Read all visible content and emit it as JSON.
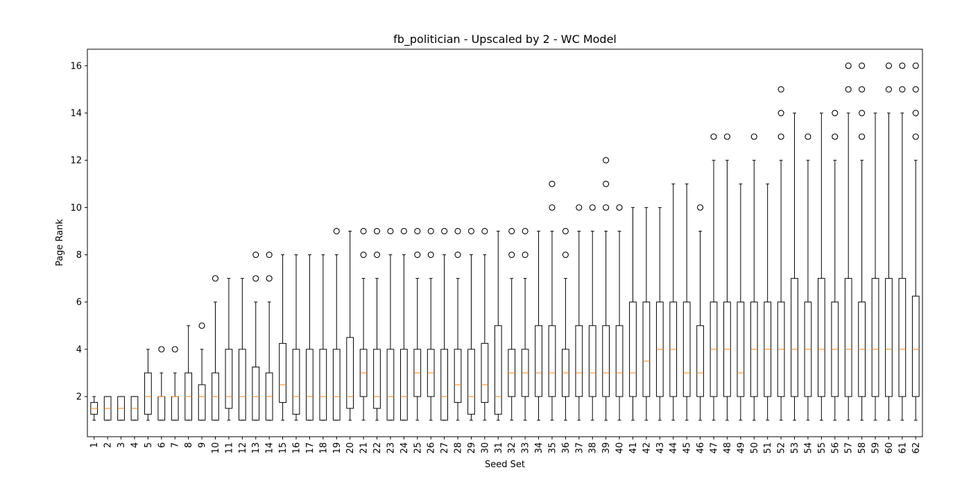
{
  "chart_data": {
    "type": "box",
    "title": "fb_politician - Upscaled by 2 - WC Model",
    "xlabel": "Seed Set",
    "ylabel": "Page Rank",
    "ylim": [
      0.3,
      16.7
    ],
    "yticks": [
      2,
      4,
      6,
      8,
      10,
      12,
      14,
      16
    ],
    "grid": false,
    "colors": {
      "box": "#000000",
      "median": "#ff7f0e",
      "background": "#ffffff"
    },
    "categories": [
      "1",
      "2",
      "3",
      "4",
      "5",
      "6",
      "7",
      "8",
      "9",
      "10",
      "11",
      "12",
      "13",
      "14",
      "15",
      "16",
      "17",
      "18",
      "19",
      "20",
      "21",
      "22",
      "23",
      "24",
      "25",
      "26",
      "27",
      "28",
      "29",
      "30",
      "31",
      "32",
      "33",
      "34",
      "35",
      "36",
      "37",
      "38",
      "39",
      "40",
      "41",
      "42",
      "43",
      "44",
      "45",
      "46",
      "47",
      "48",
      "49",
      "50",
      "51",
      "52",
      "53",
      "54",
      "55",
      "56",
      "57",
      "58",
      "59",
      "60",
      "61",
      "62"
    ],
    "boxes": [
      {
        "whislo": 1,
        "q1": 1.25,
        "med": 1.5,
        "q3": 1.75,
        "whishi": 2,
        "fliers": []
      },
      {
        "whislo": 1,
        "q1": 1,
        "med": 1.5,
        "q3": 2,
        "whishi": 2,
        "fliers": []
      },
      {
        "whislo": 1,
        "q1": 1,
        "med": 1.5,
        "q3": 2,
        "whishi": 2,
        "fliers": []
      },
      {
        "whislo": 1,
        "q1": 1,
        "med": 1.5,
        "q3": 2,
        "whishi": 2,
        "fliers": []
      },
      {
        "whislo": 1,
        "q1": 1.25,
        "med": 2,
        "q3": 3,
        "whishi": 4,
        "fliers": []
      },
      {
        "whislo": 1,
        "q1": 1,
        "med": 2,
        "q3": 2,
        "whishi": 3,
        "fliers": [
          4
        ]
      },
      {
        "whislo": 1,
        "q1": 1,
        "med": 2,
        "q3": 2,
        "whishi": 3,
        "fliers": [
          4
        ]
      },
      {
        "whislo": 1,
        "q1": 1,
        "med": 2,
        "q3": 3,
        "whishi": 5,
        "fliers": []
      },
      {
        "whislo": 1,
        "q1": 1,
        "med": 2,
        "q3": 2.5,
        "whishi": 4,
        "fliers": [
          5
        ]
      },
      {
        "whislo": 1,
        "q1": 1,
        "med": 2,
        "q3": 3,
        "whishi": 6,
        "fliers": [
          7
        ]
      },
      {
        "whislo": 1,
        "q1": 1.5,
        "med": 2,
        "q3": 4,
        "whishi": 7,
        "fliers": []
      },
      {
        "whislo": 1,
        "q1": 1,
        "med": 2,
        "q3": 4,
        "whishi": 7,
        "fliers": []
      },
      {
        "whislo": 1,
        "q1": 1,
        "med": 2,
        "q3": 3.25,
        "whishi": 6,
        "fliers": [
          7,
          8
        ]
      },
      {
        "whislo": 1,
        "q1": 1,
        "med": 2,
        "q3": 3,
        "whishi": 6,
        "fliers": [
          7,
          8
        ]
      },
      {
        "whislo": 1,
        "q1": 1.75,
        "med": 2.5,
        "q3": 4.25,
        "whishi": 8,
        "fliers": []
      },
      {
        "whislo": 1,
        "q1": 1.25,
        "med": 2,
        "q3": 4,
        "whishi": 8,
        "fliers": []
      },
      {
        "whislo": 1,
        "q1": 1,
        "med": 2,
        "q3": 4,
        "whishi": 8,
        "fliers": []
      },
      {
        "whislo": 1,
        "q1": 1,
        "med": 2,
        "q3": 4,
        "whishi": 8,
        "fliers": []
      },
      {
        "whislo": 1,
        "q1": 1,
        "med": 2,
        "q3": 4,
        "whishi": 8,
        "fliers": [
          9
        ]
      },
      {
        "whislo": 1,
        "q1": 1.5,
        "med": 2,
        "q3": 4.5,
        "whishi": 9,
        "fliers": []
      },
      {
        "whislo": 1,
        "q1": 2,
        "med": 3,
        "q3": 4,
        "whishi": 7,
        "fliers": [
          8,
          9
        ]
      },
      {
        "whislo": 1,
        "q1": 1.5,
        "med": 2,
        "q3": 4,
        "whishi": 7,
        "fliers": [
          8,
          9
        ]
      },
      {
        "whislo": 1,
        "q1": 1,
        "med": 2,
        "q3": 4,
        "whishi": 8,
        "fliers": [
          9
        ]
      },
      {
        "whislo": 1,
        "q1": 1,
        "med": 2,
        "q3": 4,
        "whishi": 8,
        "fliers": [
          9
        ]
      },
      {
        "whislo": 1,
        "q1": 2,
        "med": 3,
        "q3": 4,
        "whishi": 7,
        "fliers": [
          8,
          9
        ]
      },
      {
        "whislo": 1,
        "q1": 2,
        "med": 3,
        "q3": 4,
        "whishi": 7,
        "fliers": [
          8,
          9
        ]
      },
      {
        "whislo": 1,
        "q1": 1,
        "med": 2,
        "q3": 4,
        "whishi": 8,
        "fliers": [
          9
        ]
      },
      {
        "whislo": 1,
        "q1": 1.75,
        "med": 2.5,
        "q3": 4,
        "whishi": 7,
        "fliers": [
          8,
          9
        ]
      },
      {
        "whislo": 1,
        "q1": 1.25,
        "med": 2,
        "q3": 4,
        "whishi": 8,
        "fliers": [
          9
        ]
      },
      {
        "whislo": 1,
        "q1": 1.75,
        "med": 2.5,
        "q3": 4.25,
        "whishi": 8,
        "fliers": [
          9
        ]
      },
      {
        "whislo": 1,
        "q1": 1.25,
        "med": 2,
        "q3": 5,
        "whishi": 9,
        "fliers": []
      },
      {
        "whislo": 1,
        "q1": 2,
        "med": 3,
        "q3": 4,
        "whishi": 7,
        "fliers": [
          8,
          9
        ]
      },
      {
        "whislo": 1,
        "q1": 2,
        "med": 3,
        "q3": 4,
        "whishi": 7,
        "fliers": [
          8,
          9
        ]
      },
      {
        "whislo": 1,
        "q1": 2,
        "med": 3,
        "q3": 5,
        "whishi": 9,
        "fliers": []
      },
      {
        "whislo": 1,
        "q1": 2,
        "med": 3,
        "q3": 5,
        "whishi": 9,
        "fliers": [
          10,
          11
        ]
      },
      {
        "whislo": 1,
        "q1": 2,
        "med": 3,
        "q3": 4,
        "whishi": 7,
        "fliers": [
          8,
          9
        ]
      },
      {
        "whislo": 1,
        "q1": 2,
        "med": 3,
        "q3": 5,
        "whishi": 9,
        "fliers": [
          10
        ]
      },
      {
        "whislo": 1,
        "q1": 2,
        "med": 3,
        "q3": 5,
        "whishi": 9,
        "fliers": [
          10
        ]
      },
      {
        "whislo": 1,
        "q1": 2,
        "med": 3,
        "q3": 5,
        "whishi": 9,
        "fliers": [
          10,
          11,
          12
        ]
      },
      {
        "whislo": 1,
        "q1": 2,
        "med": 3,
        "q3": 5,
        "whishi": 9,
        "fliers": [
          10
        ]
      },
      {
        "whislo": 1,
        "q1": 2,
        "med": 3,
        "q3": 6,
        "whishi": 10,
        "fliers": []
      },
      {
        "whislo": 1,
        "q1": 2,
        "med": 3.5,
        "q3": 6,
        "whishi": 10,
        "fliers": []
      },
      {
        "whislo": 1,
        "q1": 2,
        "med": 4,
        "q3": 6,
        "whishi": 10,
        "fliers": []
      },
      {
        "whislo": 1,
        "q1": 2,
        "med": 4,
        "q3": 6,
        "whishi": 11,
        "fliers": []
      },
      {
        "whislo": 1,
        "q1": 2,
        "med": 3,
        "q3": 6,
        "whishi": 11,
        "fliers": []
      },
      {
        "whislo": 1,
        "q1": 2,
        "med": 3,
        "q3": 5,
        "whishi": 9,
        "fliers": [
          10
        ]
      },
      {
        "whislo": 1,
        "q1": 2,
        "med": 4,
        "q3": 6,
        "whishi": 12,
        "fliers": [
          13
        ]
      },
      {
        "whislo": 1,
        "q1": 2,
        "med": 4,
        "q3": 6,
        "whishi": 12,
        "fliers": [
          13
        ]
      },
      {
        "whislo": 1,
        "q1": 2,
        "med": 3,
        "q3": 6,
        "whishi": 11,
        "fliers": []
      },
      {
        "whislo": 1,
        "q1": 2,
        "med": 4,
        "q3": 6,
        "whishi": 12,
        "fliers": [
          13
        ]
      },
      {
        "whislo": 1,
        "q1": 2,
        "med": 4,
        "q3": 6,
        "whishi": 11,
        "fliers": []
      },
      {
        "whislo": 1,
        "q1": 2,
        "med": 4,
        "q3": 6,
        "whishi": 12,
        "fliers": [
          13,
          14,
          15
        ]
      },
      {
        "whislo": 1,
        "q1": 2,
        "med": 4,
        "q3": 7,
        "whishi": 14,
        "fliers": []
      },
      {
        "whislo": 1,
        "q1": 2,
        "med": 4,
        "q3": 6,
        "whishi": 12,
        "fliers": [
          13
        ]
      },
      {
        "whislo": 1,
        "q1": 2,
        "med": 4,
        "q3": 7,
        "whishi": 14,
        "fliers": []
      },
      {
        "whislo": 1,
        "q1": 2,
        "med": 4,
        "q3": 6,
        "whishi": 12,
        "fliers": [
          13,
          14
        ]
      },
      {
        "whislo": 1,
        "q1": 2,
        "med": 4,
        "q3": 7,
        "whishi": 14,
        "fliers": [
          15,
          16
        ]
      },
      {
        "whislo": 1,
        "q1": 2,
        "med": 4,
        "q3": 6,
        "whishi": 12,
        "fliers": [
          13,
          14,
          15,
          16
        ]
      },
      {
        "whislo": 1,
        "q1": 2,
        "med": 4,
        "q3": 7,
        "whishi": 14,
        "fliers": []
      },
      {
        "whislo": 1,
        "q1": 2,
        "med": 4,
        "q3": 7,
        "whishi": 14,
        "fliers": [
          15,
          16
        ]
      },
      {
        "whislo": 1,
        "q1": 2,
        "med": 4,
        "q3": 7,
        "whishi": 14,
        "fliers": [
          15,
          16
        ]
      },
      {
        "whislo": 1,
        "q1": 2,
        "med": 4,
        "q3": 6.25,
        "whishi": 12,
        "fliers": [
          13,
          14,
          15,
          16
        ]
      }
    ]
  }
}
